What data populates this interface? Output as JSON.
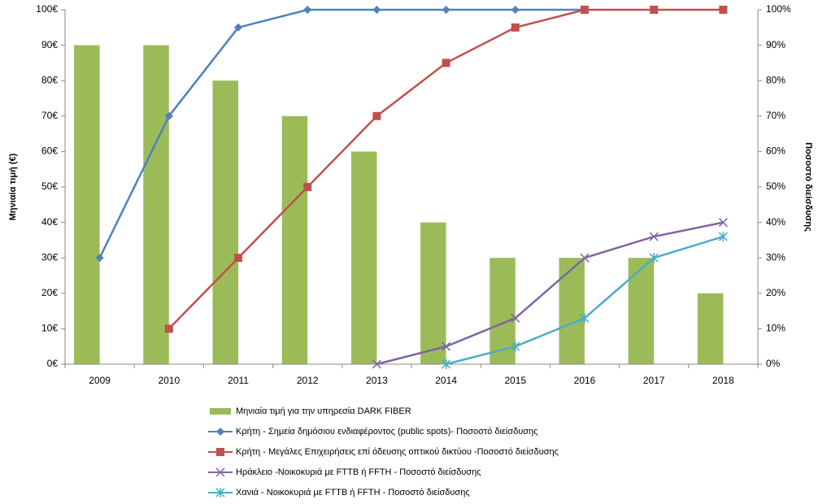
{
  "chart_data": {
    "type": "combo",
    "y_label": "Μηνιαία τιμή (€)",
    "y2_label": "Ποσοστό διείσδυσης",
    "categories": [
      "2009",
      "2010",
      "2011",
      "2012",
      "2013",
      "2014",
      "2015",
      "2016",
      "2017",
      "2018"
    ],
    "ylim": [
      0,
      100
    ],
    "yticks": [
      {
        "value": 0,
        "label": "0€"
      },
      {
        "value": 10,
        "label": "10€"
      },
      {
        "value": 20,
        "label": "20€"
      },
      {
        "value": 30,
        "label": "30€"
      },
      {
        "value": 40,
        "label": "40€"
      },
      {
        "value": 50,
        "label": "50€"
      },
      {
        "value": 60,
        "label": "60€"
      },
      {
        "value": 70,
        "label": "70€"
      },
      {
        "value": 80,
        "label": "80€"
      },
      {
        "value": 90,
        "label": "90€"
      },
      {
        "value": 100,
        "label": "100€"
      }
    ],
    "y2lim": [
      0,
      100
    ],
    "y2ticks": [
      {
        "value": 0,
        "label": "0%"
      },
      {
        "value": 10,
        "label": "10%"
      },
      {
        "value": 20,
        "label": "20%"
      },
      {
        "value": 30,
        "label": "30%"
      },
      {
        "value": 40,
        "label": "40%"
      },
      {
        "value": 50,
        "label": "50%"
      },
      {
        "value": 60,
        "label": "60%"
      },
      {
        "value": 70,
        "label": "70%"
      },
      {
        "value": 80,
        "label": "80%"
      },
      {
        "value": 90,
        "label": "90%"
      },
      {
        "value": 100,
        "label": "100%"
      }
    ],
    "series": [
      {
        "name": "Μηνιαία τιμή για την υπηρεσία DARK FIBER",
        "type": "bar",
        "color": "#9bbb59",
        "values": [
          90,
          90,
          80,
          70,
          60,
          40,
          30,
          30,
          30,
          20
        ]
      },
      {
        "name": "Κρήτη - Σημεία δημόσιου ενδιαφέροντος (public spots)- Ποσοστό διείσδυσης",
        "type": "line",
        "axis": "y2",
        "marker": "diamond",
        "color": "#4f81bd",
        "values": [
          30,
          70,
          95,
          100,
          100,
          100,
          100,
          100,
          null,
          null
        ]
      },
      {
        "name": "Κρήτη - Μεγάλες Επιχειρήσεις επί όδευσης οπτικού δικτύου -Ποσοστό διείσδυσης",
        "type": "line",
        "axis": "y2",
        "marker": "square",
        "color": "#c0504d",
        "values": [
          null,
          10,
          30,
          50,
          70,
          85,
          95,
          100,
          100,
          100
        ]
      },
      {
        "name": "Ηράκλειο -Νοικοκυριά με FTTB ή FFTH - Ποσοστό διείσδυσης",
        "type": "line",
        "axis": "y2",
        "marker": "x",
        "color": "#8064a2",
        "values": [
          null,
          null,
          null,
          null,
          0,
          5,
          13,
          30,
          36,
          40
        ]
      },
      {
        "name": "Χανιά - Νοικοκυριά με FTTB ή FFTH - Ποσοστό διείσδυσης",
        "type": "line",
        "axis": "y2",
        "marker": "star",
        "color": "#4bacc6",
        "values": [
          null,
          null,
          null,
          null,
          null,
          0,
          5,
          13,
          30,
          36
        ]
      }
    ]
  }
}
